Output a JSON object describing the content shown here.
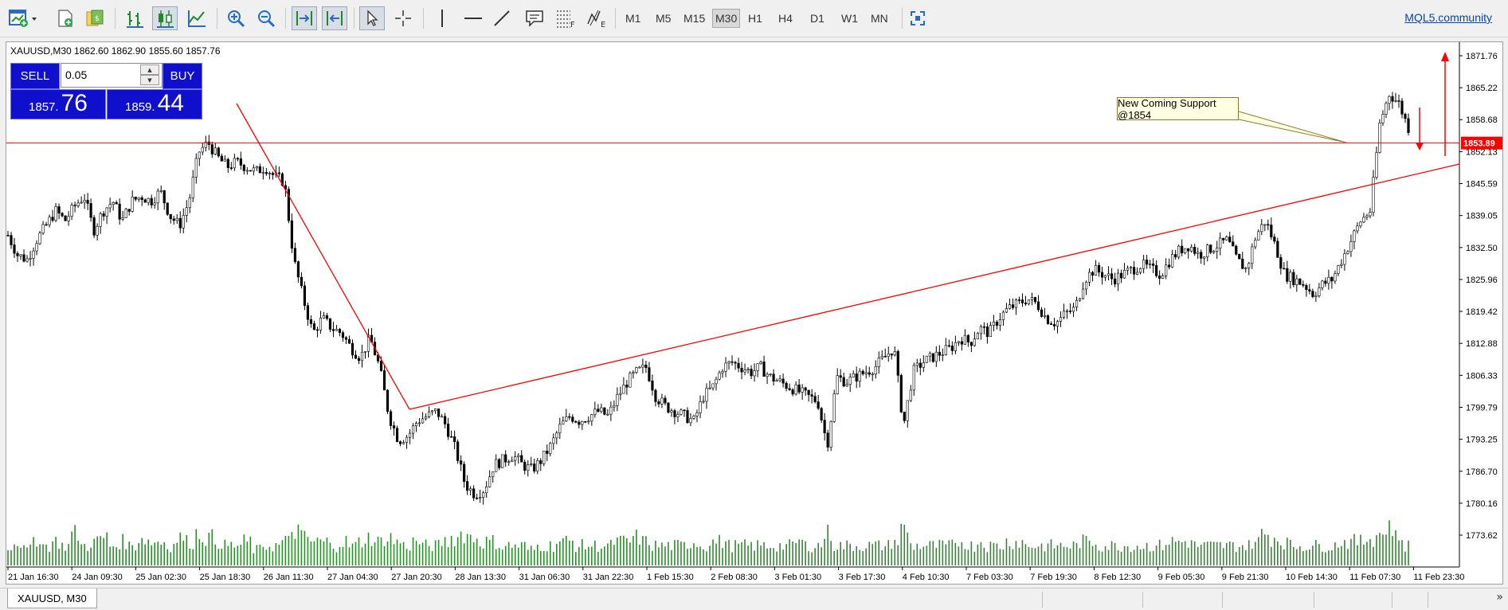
{
  "toolbar": {
    "timeframes": [
      "M1",
      "M5",
      "M15",
      "M30",
      "H1",
      "H4",
      "D1",
      "W1",
      "MN"
    ],
    "active_timeframe": "M30",
    "community_link": "MQL5.community",
    "icons": [
      "new-chart-icon",
      "new-order-icon",
      "profiles-icon",
      "bar-chart-icon",
      "candlestick-icon",
      "line-chart-icon",
      "zoom-in-icon",
      "zoom-out-icon",
      "auto-scroll-icon",
      "chart-shift-icon",
      "cursor-icon",
      "crosshair-icon",
      "vertical-line-icon",
      "horizontal-line-icon",
      "trend-line-icon",
      "text-label-icon",
      "fibonacci-icon",
      "elliott-wave-icon",
      "fullscreen-icon"
    ]
  },
  "chart": {
    "symbol_info": "XAUUSD,M30  1862.60 1862.90 1855.60 1857.76",
    "trade_panel": {
      "sell_label": "SELL",
      "buy_label": "BUY",
      "lot": "0.05",
      "sell_price_small": "1857.",
      "sell_price_big": "76",
      "buy_price_small": "1859.",
      "buy_price_big": "44"
    },
    "annotation": "New Coming Support @1854",
    "current_level_label": "1853.89",
    "colors": {
      "candles": "#000000",
      "volume": "#2e8b2e",
      "lines": "#ff0000",
      "level_box": "#ff0000"
    }
  },
  "chart_data": {
    "type": "candlestick",
    "symbol": "XAUUSD",
    "timeframe": "M30",
    "ohlc_current": {
      "open": 1862.6,
      "high": 1862.9,
      "low": 1855.6,
      "close": 1857.76
    },
    "y_ticks": [
      "1871.76",
      "1865.22",
      "1858.68",
      "1852.13",
      "1845.59",
      "1839.05",
      "1832.50",
      "1825.96",
      "1819.42",
      "1812.88",
      "1806.33",
      "1799.79",
      "1793.25",
      "1786.70",
      "1780.16",
      "1773.62"
    ],
    "x_ticks": [
      "21 Jan 16:30",
      "24 Jan 09:30",
      "25 Jan 02:30",
      "25 Jan 18:30",
      "26 Jan 11:30",
      "27 Jan 04:30",
      "27 Jan 20:30",
      "28 Jan 13:30",
      "31 Jan 06:30",
      "31 Jan 22:30",
      "1 Feb 15:30",
      "2 Feb 08:30",
      "3 Feb 01:30",
      "3 Feb 17:30",
      "4 Feb 10:30",
      "7 Feb 03:30",
      "7 Feb 19:30",
      "8 Feb 12:30",
      "9 Feb 05:30",
      "9 Feb 21:30",
      "10 Feb 14:30",
      "11 Feb 07:30",
      "11 Feb 23:30"
    ],
    "price_path": [
      1835,
      1831,
      1830,
      1834,
      1837,
      1840,
      1838,
      1841,
      1843,
      1836,
      1840,
      1842,
      1838,
      1842,
      1843,
      1842,
      1844,
      1839,
      1837,
      1842,
      1852,
      1854,
      1851,
      1849,
      1850,
      1849,
      1848,
      1849,
      1847,
      1846,
      1830,
      1822,
      1815,
      1818,
      1816,
      1815,
      1812,
      1810,
      1814,
      1808,
      1798,
      1793,
      1794,
      1797,
      1798,
      1799,
      1796,
      1791,
      1784,
      1782,
      1783,
      1788,
      1789,
      1790,
      1788,
      1787,
      1789,
      1792,
      1796,
      1798,
      1797,
      1798,
      1799,
      1798,
      1802,
      1805,
      1807,
      1808,
      1802,
      1800,
      1799,
      1798,
      1797,
      1802,
      1804,
      1808,
      1809,
      1808,
      1807,
      1808,
      1806,
      1805,
      1804,
      1803,
      1802,
      1801,
      1792,
      1806,
      1805,
      1806,
      1807,
      1808,
      1810,
      1812,
      1796,
      1807,
      1809,
      1810,
      1811,
      1812,
      1814,
      1813,
      1816,
      1815,
      1818,
      1820,
      1821,
      1822,
      1821,
      1818,
      1817,
      1819,
      1820,
      1826,
      1828,
      1827,
      1826,
      1827,
      1828,
      1829,
      1828,
      1827,
      1830,
      1832,
      1833,
      1831,
      1832,
      1833,
      1834,
      1830,
      1828,
      1835,
      1838,
      1833,
      1827,
      1826,
      1825,
      1823,
      1825,
      1826,
      1830,
      1834,
      1838,
      1840,
      1858,
      1864,
      1862,
      1857
    ],
    "volume_relative": [
      0.5,
      0.6,
      0.4,
      0.7,
      0.5,
      0.6,
      0.5,
      0.8,
      0.5,
      0.6,
      0.7,
      0.5,
      0.6,
      0.5,
      0.7,
      0.6,
      0.6,
      0.5,
      0.7,
      0.6,
      0.8,
      0.7,
      0.6,
      0.5,
      0.5,
      0.6,
      0.4,
      0.5,
      0.5,
      0.6,
      0.9,
      0.7,
      0.6,
      0.6,
      0.5,
      0.6,
      0.5,
      0.6,
      0.7,
      0.6,
      0.7,
      0.6,
      0.5,
      0.6,
      0.5,
      0.5,
      0.6,
      0.7,
      0.8,
      0.7,
      0.6,
      0.6,
      0.5,
      0.5,
      0.5,
      0.4,
      0.5,
      0.5,
      0.6,
      0.6,
      0.5,
      0.5,
      0.5,
      0.5,
      0.6,
      0.6,
      0.7,
      0.6,
      0.5,
      0.5,
      0.5,
      0.5,
      0.6,
      0.5,
      0.6,
      0.6,
      0.5,
      0.5,
      0.5,
      0.5,
      0.5,
      0.5,
      0.5,
      0.6,
      0.5,
      0.5,
      0.8,
      0.5,
      0.5,
      0.5,
      0.5,
      0.5,
      0.5,
      0.6,
      0.9,
      0.5,
      0.5,
      0.5,
      0.5,
      0.5,
      0.6,
      0.5,
      0.6,
      0.5,
      0.5,
      0.6,
      0.6,
      0.5,
      0.5,
      0.5,
      0.5,
      0.5,
      0.5,
      0.6,
      0.6,
      0.5,
      0.5,
      0.5,
      0.5,
      0.5,
      0.5,
      0.5,
      0.6,
      0.6,
      0.6,
      0.5,
      0.5,
      0.5,
      0.5,
      0.5,
      0.5,
      0.6,
      0.8,
      0.7,
      0.6,
      0.5,
      0.5,
      0.5,
      0.5,
      0.5,
      0.6,
      0.6,
      0.6,
      0.7,
      0.8,
      1.0,
      0.7,
      0.5
    ],
    "ylim": [
      1770,
      1875
    ],
    "support_level": 1853.89,
    "grid": false
  }
}
